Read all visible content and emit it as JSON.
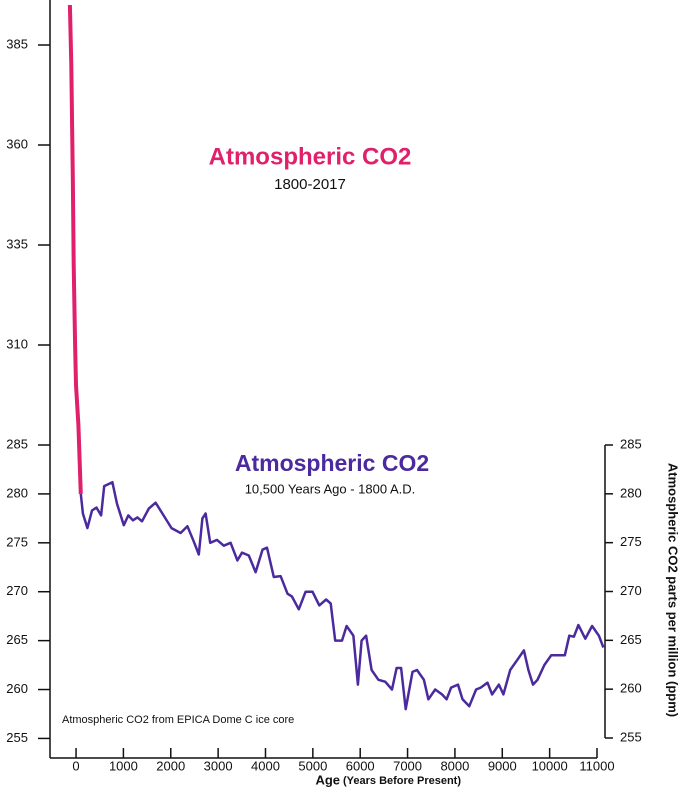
{
  "chart_data": [
    {
      "type": "line",
      "title": "Atmospheric CO2",
      "subtitle": "1800-2017",
      "color": "#e0206a",
      "x": [
        100,
        50,
        0,
        -20,
        -50,
        -67,
        -100,
        -130
      ],
      "values": [
        280,
        290,
        300,
        310,
        330,
        350,
        380,
        395
      ],
      "ylim": [
        285,
        395
      ],
      "yticks": [
        310,
        335,
        360,
        385
      ]
    },
    {
      "type": "line",
      "title": "Atmospheric CO2",
      "subtitle": "10,500 Years Ago - 1800 A.D.",
      "annotation": "Atmospheric CO2 from EPICA Dome C ice core",
      "xlabel": "Age",
      "xlabel_note": "(Years Before Present)",
      "y2label": "Atmospheric CO2 parts per million (ppm)",
      "color": "#4b2a9e",
      "x": [
        100,
        144,
        240,
        336,
        432,
        528,
        595,
        768,
        864,
        1008,
        1104,
        1200,
        1296,
        1392,
        1536,
        1680,
        1824,
        2016,
        2208,
        2352,
        2496,
        2592,
        2669,
        2736,
        2832,
        2976,
        3120,
        3264,
        3408,
        3504,
        3648,
        3792,
        3936,
        4032,
        4176,
        4320,
        4464,
        4560,
        4704,
        4848,
        4992,
        5136,
        5280,
        5376,
        5472,
        5616,
        5712,
        5856,
        5952,
        6029,
        6125,
        6240,
        6384,
        6528,
        6672,
        6768,
        6864,
        6960,
        7104,
        7200,
        7344,
        7440,
        7584,
        7728,
        7824,
        7920,
        8064,
        8160,
        8304,
        8448,
        8544,
        8688,
        8784,
        8928,
        9024,
        9168,
        9312,
        9456,
        9552,
        9648,
        9744,
        9888,
        10032,
        10224,
        10320,
        10416,
        10512,
        10608,
        10752,
        10896,
        11040,
        11136
      ],
      "values": [
        280,
        278,
        276.5,
        278.3,
        278.6,
        277.8,
        280.8,
        281.2,
        279,
        276.8,
        277.8,
        277.3,
        277.6,
        277.2,
        278.5,
        279.1,
        278,
        276.5,
        276,
        276.7,
        275,
        273.8,
        277.5,
        278,
        275,
        275.3,
        274.7,
        275,
        273.2,
        274,
        273.7,
        272,
        274.3,
        274.5,
        271.5,
        271.6,
        269.8,
        269.5,
        268.2,
        270,
        270,
        268.6,
        269.2,
        268.8,
        265,
        265,
        266.5,
        265.5,
        260.5,
        265,
        265.5,
        262,
        261,
        260.8,
        260,
        262.2,
        262.2,
        258,
        261.8,
        262,
        261,
        259,
        260,
        259.5,
        259,
        260.2,
        260.5,
        259,
        258.3,
        260,
        260.2,
        260.7,
        259.5,
        260.5,
        259.5,
        262,
        263,
        264,
        262,
        260.5,
        261,
        262.5,
        263.5,
        263.5,
        263.5,
        265.5,
        265.4,
        266.6,
        265.2,
        266.5,
        265.5,
        264.3
      ],
      "xlim": [
        -550,
        11000
      ],
      "xticks": [
        0,
        1000,
        2000,
        3000,
        4000,
        5000,
        6000,
        7000,
        8000,
        9000,
        10000,
        11000
      ],
      "ylim": [
        253,
        285
      ],
      "yticks": [
        255,
        260,
        265,
        270,
        275,
        280,
        285
      ],
      "y2lim": [
        255,
        285
      ],
      "y2ticks": [
        255,
        260,
        265,
        270,
        275,
        280,
        285
      ]
    }
  ]
}
